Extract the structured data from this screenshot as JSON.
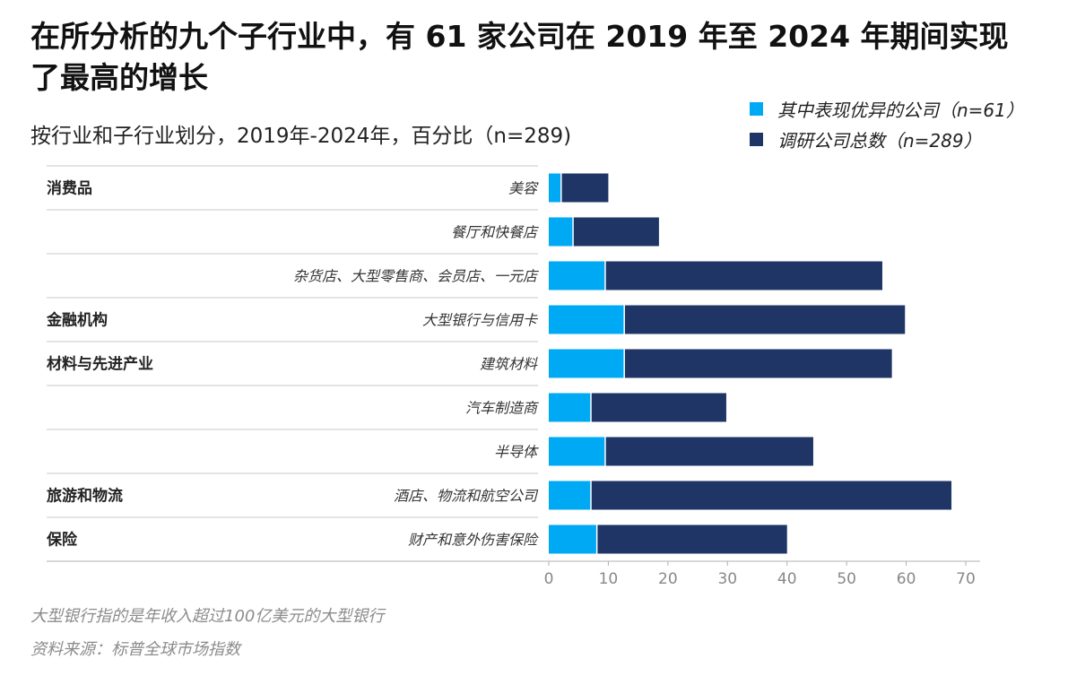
{
  "title": "在所分析的九个子行业中，有 61 家公司在 2019 年至 2024 年期间实现了最高的增长",
  "subtitle": "按行业和子行业划分，2019年-2024年，百分比（n=289)",
  "legend": {
    "items": [
      {
        "label": "其中表现优异的公司（n=61）",
        "color": "#00a9f4"
      },
      {
        "label": "调研公司总数（n=289）",
        "color": "#1f3566"
      }
    ]
  },
  "footnotes": {
    "note": "大型银行指的是年收入超过100亿美元的大型银行",
    "source": "资料来源：标普全球市场指数"
  },
  "chart_data": {
    "type": "bar",
    "orientation": "horizontal",
    "stacked": false,
    "categories": [
      "美容",
      "餐厅和快餐店",
      "杂货店、大型零售商、会员店、一元店",
      "大型银行与信用卡",
      "建筑材料",
      "汽车制造商",
      "半导体",
      "酒店、物流和航空公司",
      "财产和意外伤害保险"
    ],
    "sectors": [
      "消费品",
      "",
      "",
      "金融机构",
      "材料与先进产业",
      "",
      "",
      "旅游和物流",
      "保险"
    ],
    "series": [
      {
        "name": "其中表现优异的公司（n=61）",
        "values": [
          2,
          4,
          9.4,
          12.6,
          12.6,
          7,
          9.4,
          7,
          8
        ],
        "color": "#00a9f4"
      },
      {
        "name": "调研公司总数（n=289）",
        "values": [
          10,
          18.5,
          56,
          59.8,
          57.6,
          29.8,
          44.4,
          67.6,
          40
        ],
        "color": "#1f3566"
      }
    ],
    "x_ticks": [
      "0",
      "10",
      "20",
      "30",
      "40",
      "50",
      "60",
      "70"
    ],
    "xlim": [
      0,
      70
    ],
    "xlabel": "",
    "ylabel": ""
  }
}
